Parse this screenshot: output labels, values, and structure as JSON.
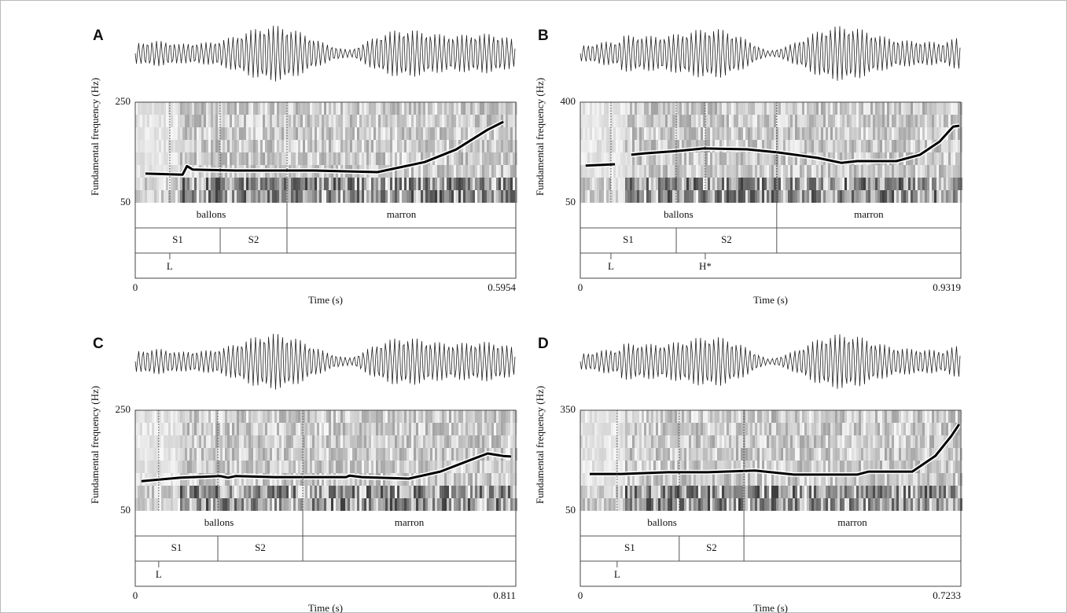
{
  "chart_data": [
    {
      "type": "line",
      "title": "A",
      "x_label": "Time (s)",
      "y_label": "Fundamental frequency (Hz)",
      "xlim": [
        0,
        0.5954
      ],
      "xticks": [
        0,
        0.5954
      ],
      "ylim": [
        50,
        250
      ],
      "yticks": [
        50,
        250
      ],
      "color": "#000000",
      "x": [
        0.016,
        0.074,
        0.081,
        0.09,
        0.157,
        0.28,
        0.379,
        0.453,
        0.502,
        0.551,
        0.576
      ],
      "values": [
        108,
        106,
        123,
        116,
        114,
        114,
        111,
        131,
        156,
        195,
        211
      ],
      "tiers": [
        {
          "intervals": [
            {
              "label": "ballons",
              "start": 0,
              "end": 0.2374
            },
            {
              "label": "marron",
              "start": 0.2374,
              "end": 0.5954
            }
          ]
        },
        {
          "intervals": [
            {
              "label": "S1",
              "start": 0,
              "end": 0.1329
            },
            {
              "label": "S2",
              "start": 0.1329,
              "end": 0.2374
            }
          ]
        },
        {
          "points": [
            {
              "label": "L",
              "time": 0.054
            }
          ]
        }
      ]
    },
    {
      "type": "line",
      "title": "B",
      "x_label": "Time (s)",
      "y_label": "Fundamental frequency (Hz)",
      "xlim": [
        0,
        0.9319
      ],
      "xticks": [
        0,
        0.9319
      ],
      "ylim": [
        50,
        400
      ],
      "yticks": [
        50,
        400
      ],
      "color": "#000000",
      "x": [
        0.013,
        0.085,
        0.1,
        0.125,
        0.158,
        0.235,
        0.302,
        0.408,
        0.485,
        0.581,
        0.639,
        0.678,
        0.774,
        0.832,
        0.88,
        0.913,
        0.928
      ],
      "values": [
        179,
        184,
        null,
        217,
        222,
        230,
        239,
        236,
        225,
        206,
        189,
        195,
        195,
        217,
        263,
        315,
        318
      ],
      "tiers": [
        {
          "intervals": [
            {
              "label": "ballons",
              "start": 0,
              "end": 0.481
            },
            {
              "label": "marron",
              "start": 0.481,
              "end": 0.9319
            }
          ]
        },
        {
          "intervals": [
            {
              "label": "S1",
              "start": 0,
              "end": 0.235
            },
            {
              "label": "S2",
              "start": 0.235,
              "end": 0.481
            }
          ]
        },
        {
          "points": [
            {
              "label": "L",
              "time": 0.075
            },
            {
              "label": "H*",
              "time": 0.306
            }
          ]
        }
      ]
    },
    {
      "type": "line",
      "title": "C",
      "x_label": "Time (s)",
      "y_label": "Fundamental frequency (Hz)",
      "xlim": [
        0,
        0.811
      ],
      "xticks": [
        0,
        0.811
      ],
      "ylim": [
        50,
        250
      ],
      "yticks": [
        50,
        250
      ],
      "color": "#000000",
      "x": [
        0.013,
        0.097,
        0.181,
        0.198,
        0.214,
        0.298,
        0.449,
        0.457,
        0.483,
        0.583,
        0.65,
        0.717,
        0.751,
        0.784,
        0.801
      ],
      "values": [
        109,
        116,
        119,
        116,
        119,
        117,
        117,
        120,
        117,
        114,
        128,
        152,
        164,
        159,
        158
      ],
      "tiers": [
        {
          "intervals": [
            {
              "label": "ballons",
              "start": 0,
              "end": 0.357
            },
            {
              "label": "marron",
              "start": 0.357,
              "end": 0.811
            }
          ]
        },
        {
          "intervals": [
            {
              "label": "S1",
              "start": 0,
              "end": 0.176
            },
            {
              "label": "S2",
              "start": 0.176,
              "end": 0.357
            }
          ]
        },
        {
          "points": [
            {
              "label": "L",
              "time": 0.05
            }
          ]
        }
      ]
    },
    {
      "type": "line",
      "title": "D",
      "x_label": "Time (s)",
      "y_label": "Fundamental frequency (Hz)",
      "xlim": [
        0,
        0.7233
      ],
      "xticks": [
        0,
        0.7233
      ],
      "ylim": [
        50,
        350
      ],
      "yticks": [
        50,
        350
      ],
      "color": "#000000",
      "x": [
        0.018,
        0.078,
        0.167,
        0.242,
        0.332,
        0.406,
        0.526,
        0.548,
        0.631,
        0.675,
        0.705,
        0.72
      ],
      "values": [
        160,
        160,
        165,
        165,
        170,
        158,
        158,
        167,
        167,
        214,
        273,
        308
      ],
      "tiers": [
        {
          "intervals": [
            {
              "label": "ballons",
              "start": 0,
              "end": 0.311
            },
            {
              "label": "marron",
              "start": 0.311,
              "end": 0.7233
            }
          ]
        },
        {
          "intervals": [
            {
              "label": "S1",
              "start": 0,
              "end": 0.188
            },
            {
              "label": "S2",
              "start": 0.188,
              "end": 0.311
            }
          ]
        },
        {
          "points": [
            {
              "label": "L",
              "time": 0.07
            }
          ]
        }
      ]
    }
  ]
}
